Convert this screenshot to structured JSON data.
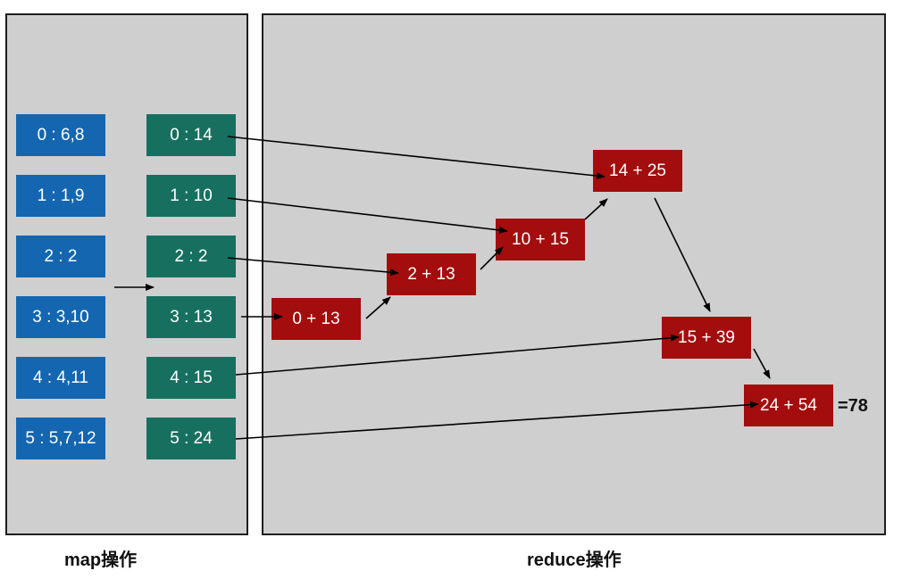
{
  "map_panel": {
    "caption": "map操作",
    "input_boxes": [
      "0 : 6,8",
      "1 : 1,9",
      "2 : 2",
      "3 : 3,10",
      "4 : 4,11",
      "5 : 5,7,12"
    ],
    "output_boxes": [
      "0 : 14",
      "1 : 10",
      "2 : 2",
      "3 : 13",
      "4 : 15",
      "5 : 24"
    ]
  },
  "reduce_panel": {
    "caption": "reduce操作",
    "steps": [
      "0 + 13",
      "2 + 13",
      "10 + 15",
      "14 + 25",
      "15 + 39",
      "24 + 54"
    ],
    "result": "=78"
  },
  "colors": {
    "panel_bg": "#d0cfd0",
    "input_box": "#1466b0",
    "output_box": "#17705f",
    "reduce_box": "#a30d0d"
  }
}
